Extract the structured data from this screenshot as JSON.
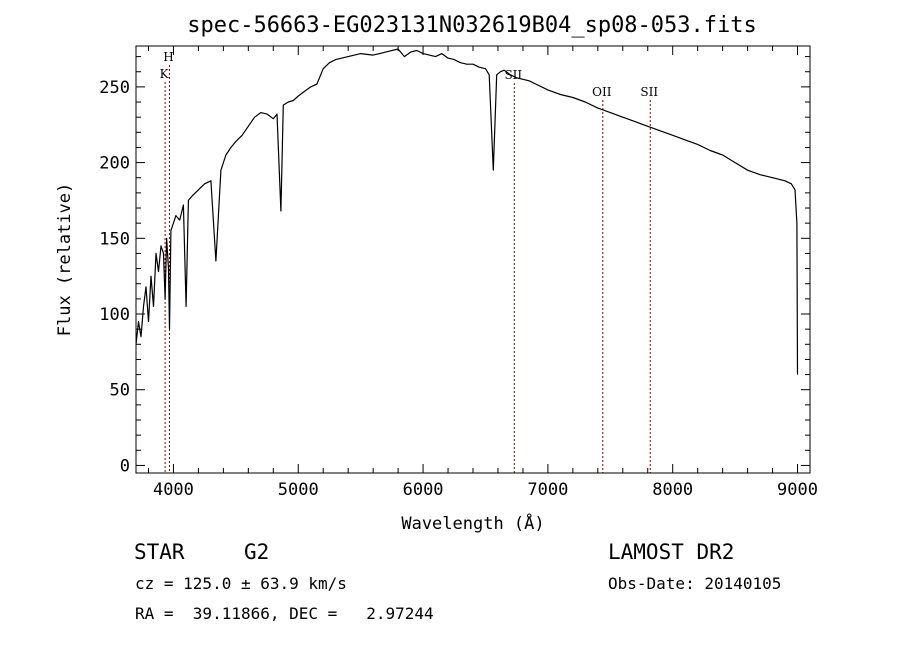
{
  "chart_data": {
    "type": "line",
    "title": "spec-56663-EG023131N032619B04_sp08-053.fits",
    "xlabel": "Wavelength (Å)",
    "ylabel": "Flux (relative)",
    "xlim": [
      3700,
      9100
    ],
    "ylim": [
      -5,
      277
    ],
    "x_ticks": [
      4000,
      5000,
      6000,
      7000,
      8000,
      9000
    ],
    "y_ticks": [
      0,
      50,
      100,
      150,
      200,
      250
    ],
    "grid": false,
    "legend": "none",
    "series": [
      {
        "x": [
          3700,
          3720,
          3740,
          3760,
          3780,
          3800,
          3820,
          3840,
          3860,
          3880,
          3900,
          3920,
          3933,
          3945,
          3960,
          3968,
          3980,
          4000,
          4020,
          4050,
          4080,
          4101,
          4120,
          4150,
          4200,
          4250,
          4300,
          4340,
          4380,
          4420,
          4460,
          4500,
          4550,
          4600,
          4650,
          4700,
          4750,
          4800,
          4830,
          4861,
          4880,
          4920,
          4960,
          5000,
          5050,
          5100,
          5150,
          5200,
          5250,
          5300,
          5400,
          5500,
          5600,
          5700,
          5800,
          5850,
          5900,
          5950,
          6000,
          6050,
          6100,
          6150,
          6200,
          6250,
          6300,
          6350,
          6400,
          6450,
          6500,
          6530,
          6563,
          6590,
          6620,
          6650,
          6700,
          6750,
          6800,
          6850,
          6900,
          7000,
          7100,
          7200,
          7300,
          7400,
          7500,
          7600,
          7700,
          7800,
          7900,
          8000,
          8100,
          8200,
          8300,
          8400,
          8500,
          8600,
          8700,
          8800,
          8900,
          8950,
          8980,
          8995,
          9000
        ],
        "y": [
          80,
          95,
          85,
          105,
          118,
          95,
          125,
          105,
          140,
          128,
          145,
          140,
          110,
          150,
          130,
          90,
          155,
          160,
          165,
          162,
          172,
          105,
          175,
          178,
          182,
          186,
          188,
          135,
          195,
          205,
          210,
          214,
          218,
          224,
          230,
          233,
          232,
          229,
          232,
          168,
          238,
          240,
          241,
          244,
          247,
          250,
          252,
          262,
          266,
          268,
          270,
          272,
          271,
          273,
          275,
          270,
          273,
          274,
          272,
          271,
          270,
          272,
          269,
          268,
          266,
          265,
          265,
          263,
          262,
          258,
          195,
          258,
          260,
          261,
          258,
          256,
          255,
          254,
          252,
          248,
          245,
          243,
          240,
          236,
          233,
          230,
          227,
          224,
          221,
          218,
          215,
          212,
          208,
          205,
          200,
          195,
          192,
          190,
          188,
          186,
          182,
          160,
          60
        ]
      }
    ],
    "annotations": [
      {
        "label": "H",
        "x": 3968
      },
      {
        "label": "K",
        "x": 3933
      },
      {
        "label": "SII",
        "x": 6731
      },
      {
        "label": "OII",
        "x": 7440
      },
      {
        "label": "SII",
        "x": 7820
      }
    ]
  },
  "info": {
    "object_class": "STAR",
    "subclass": "G2",
    "survey": "LAMOST DR2",
    "cz": "cz = 125.0 ± 63.9 km/s",
    "obs_date": "Obs-Date: 20140105",
    "coords": "RA =  39.11866, DEC =   2.97244"
  },
  "colors": {
    "spectrum": "#000000",
    "marker_lines": "#8b0000",
    "frame": "#000000",
    "background": "#ffffff"
  }
}
